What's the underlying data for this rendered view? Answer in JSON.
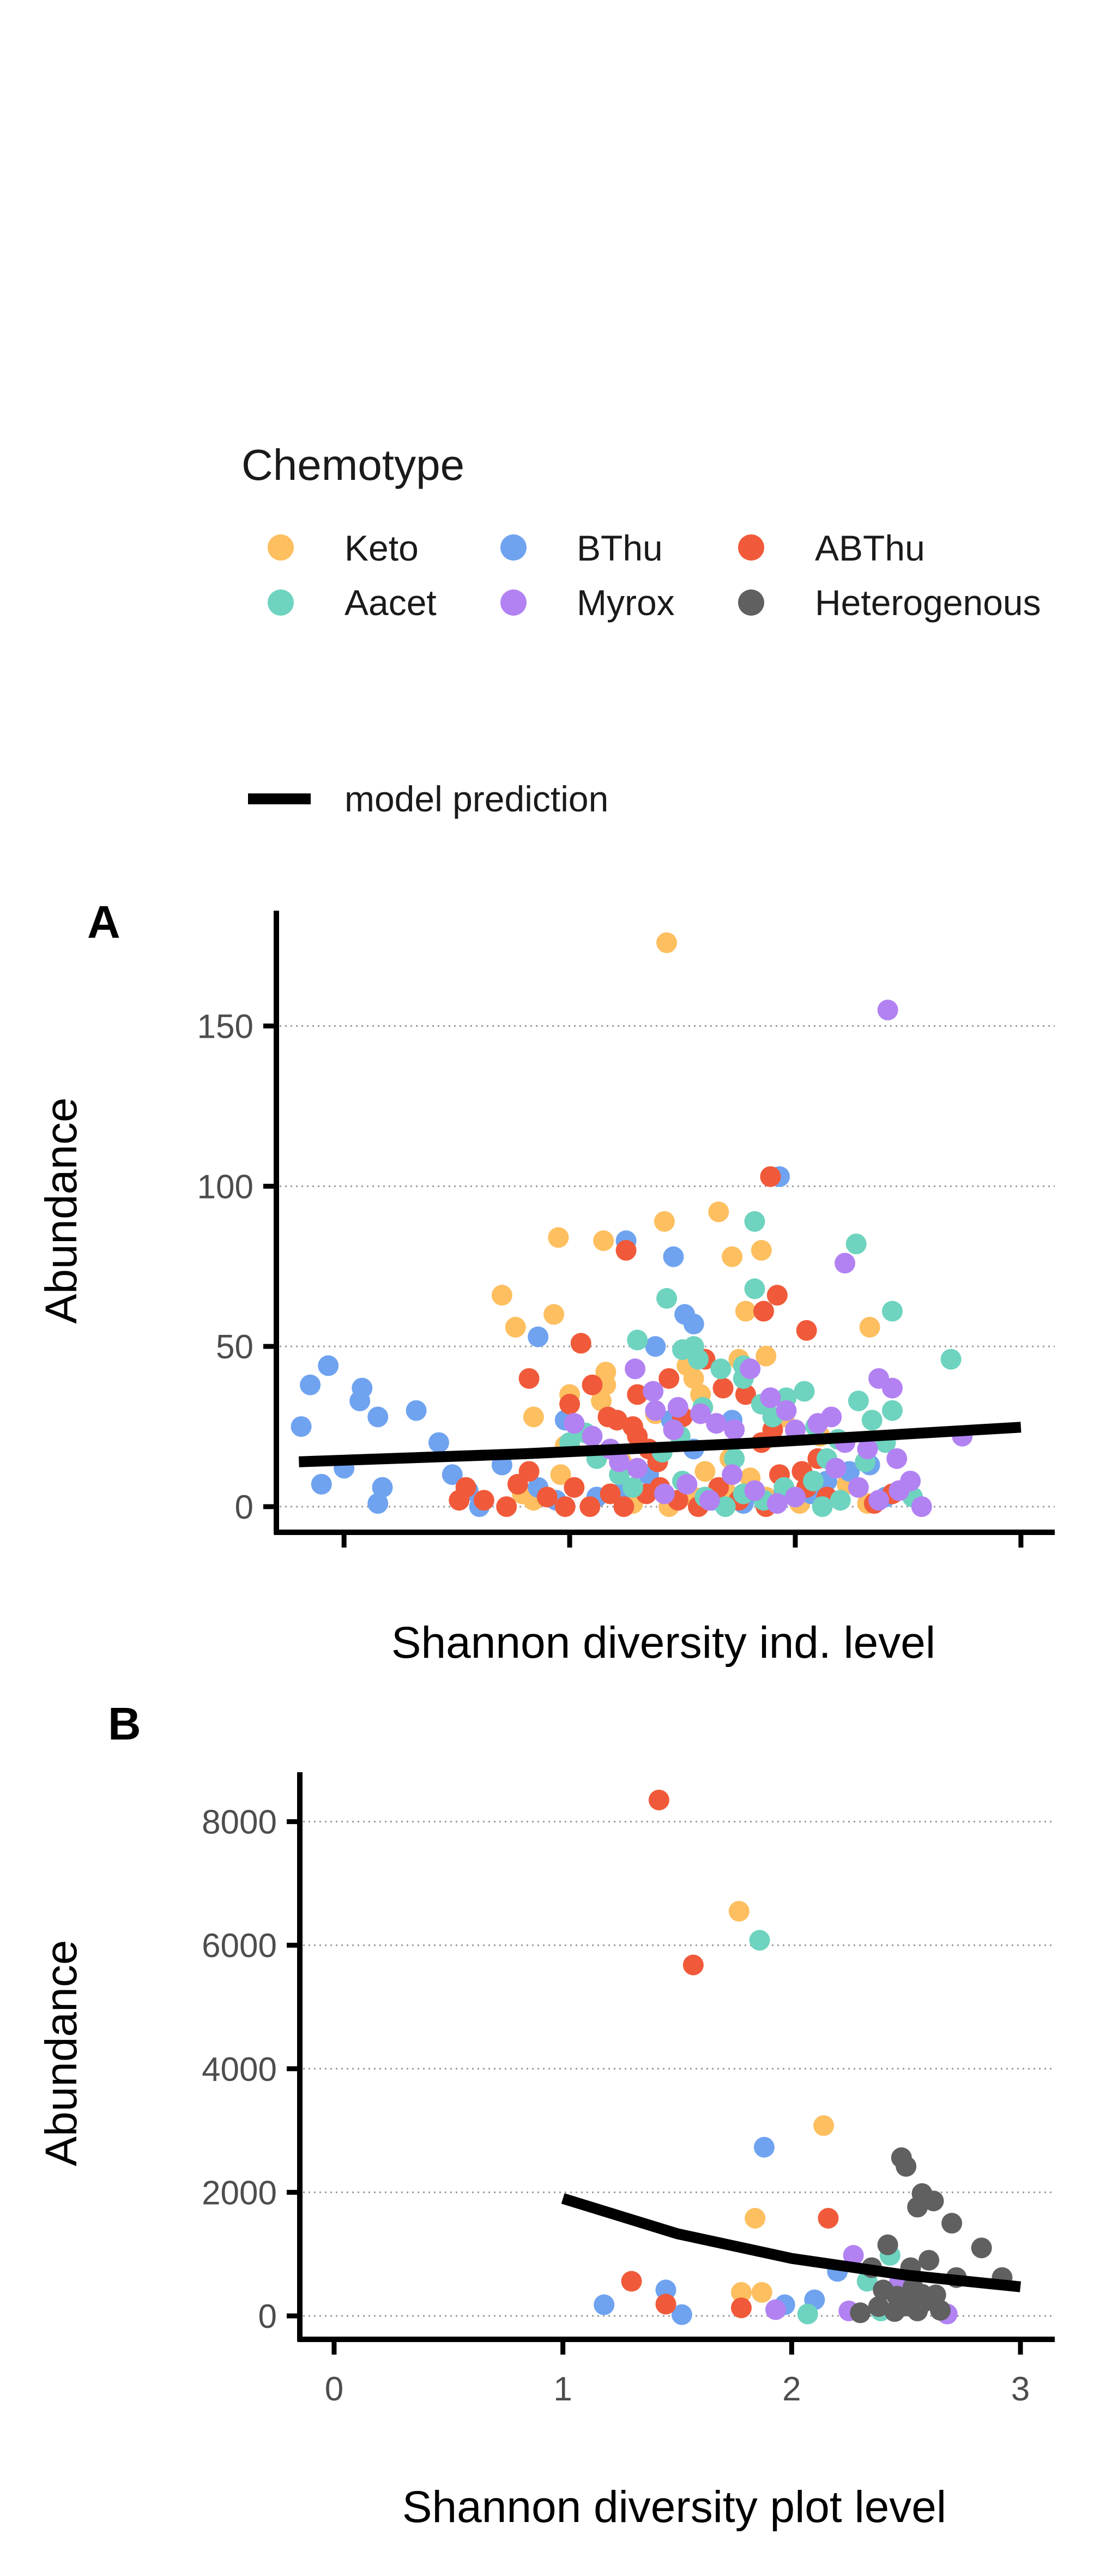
{
  "legend": {
    "title": "Chemotype",
    "items": [
      {
        "label": "Keto",
        "color": "#FDBF5F"
      },
      {
        "label": "BThu",
        "color": "#6FA3F0"
      },
      {
        "label": "ABThu",
        "color": "#F05A3A"
      },
      {
        "label": "Aacet",
        "color": "#6ED3BF"
      },
      {
        "label": "Myrox",
        "color": "#B282F2"
      },
      {
        "label": "Heterogenous",
        "color": "#606060"
      }
    ],
    "line_label": "model prediction"
  },
  "chart_data": [
    {
      "panel": "A",
      "type": "scatter",
      "xlabel": "Shannon diversity ind. level",
      "ylabel": "Abundance",
      "xlim": [
        -0.3,
        3.15
      ],
      "ylim": [
        -8,
        186
      ],
      "xticks": [
        0,
        1,
        2,
        3
      ],
      "xtick_labels": [
        "",
        "",
        "",
        ""
      ],
      "yticks": [
        0,
        50,
        100,
        150
      ],
      "ytick_labels": [
        "0",
        "50",
        "100",
        "150"
      ],
      "grid": "horizontal dotted",
      "model_line": {
        "x": [
          -0.2,
          0.8,
          1.8,
          3.0
        ],
        "y": [
          14,
          16.5,
          19.8,
          24.8
        ]
      },
      "points": {
        "Keto": [
          [
            1.43,
            176
          ],
          [
            1.66,
            92
          ],
          [
            1.72,
            78
          ],
          [
            1.85,
            80
          ],
          [
            0.95,
            84
          ],
          [
            1.15,
            83
          ],
          [
            1.42,
            89
          ],
          [
            0.7,
            66
          ],
          [
            0.76,
            56
          ],
          [
            0.93,
            60
          ],
          [
            2.33,
            56
          ],
          [
            1.16,
            42
          ],
          [
            1.16,
            38
          ],
          [
            1.14,
            33
          ],
          [
            1.52,
            44
          ],
          [
            1.55,
            40
          ],
          [
            1.75,
            46
          ],
          [
            1.78,
            61
          ],
          [
            1.87,
            47
          ],
          [
            1.95,
            28
          ],
          [
            1.38,
            29
          ],
          [
            1.58,
            35
          ],
          [
            0.84,
            28
          ],
          [
            1.0,
            35
          ],
          [
            0.79,
            4
          ],
          [
            0.84,
            2
          ],
          [
            0.96,
            10
          ],
          [
            0.98,
            19
          ],
          [
            1.23,
            14
          ],
          [
            1.28,
            1
          ],
          [
            1.44,
            0
          ],
          [
            1.55,
            3
          ],
          [
            1.6,
            11
          ],
          [
            1.69,
            5
          ],
          [
            1.8,
            9
          ],
          [
            1.87,
            3
          ],
          [
            2.02,
            1
          ],
          [
            2.11,
            22
          ],
          [
            2.23,
            7
          ],
          [
            2.32,
            1
          ],
          [
            1.71,
            15
          ]
        ],
        "BThu": [
          [
            1.93,
            103
          ],
          [
            1.25,
            83
          ],
          [
            1.46,
            78
          ],
          [
            1.55,
            57
          ],
          [
            1.51,
            60
          ],
          [
            1.38,
            50
          ],
          [
            0.86,
            53
          ],
          [
            0.98,
            27
          ],
          [
            -0.19,
            25
          ],
          [
            -0.15,
            38
          ],
          [
            -0.07,
            44
          ],
          [
            0.08,
            37
          ],
          [
            0.07,
            33
          ],
          [
            0.15,
            28
          ],
          [
            0.32,
            30
          ],
          [
            0.42,
            20
          ],
          [
            0.48,
            10
          ],
          [
            -0.1,
            7
          ],
          [
            0.0,
            12
          ],
          [
            0.15,
            1
          ],
          [
            0.17,
            6
          ],
          [
            0.55,
            5
          ],
          [
            0.6,
            0
          ],
          [
            0.86,
            6
          ],
          [
            0.94,
            2
          ],
          [
            1.12,
            3
          ],
          [
            1.22,
            4
          ],
          [
            1.35,
            10
          ],
          [
            1.45,
            27
          ],
          [
            1.63,
            2
          ],
          [
            1.77,
            1
          ],
          [
            1.95,
            5
          ],
          [
            2.07,
            4
          ],
          [
            2.14,
            8
          ],
          [
            2.24,
            11
          ],
          [
            2.33,
            13
          ],
          [
            2.4,
            3
          ],
          [
            1.55,
            18
          ],
          [
            1.72,
            27
          ],
          [
            0.7,
            13
          ]
        ],
        "ABThu": [
          [
            1.89,
            103
          ],
          [
            1.92,
            66
          ],
          [
            1.86,
            61
          ],
          [
            2.05,
            55
          ],
          [
            1.25,
            80
          ],
          [
            1.05,
            51
          ],
          [
            1.0,
            32
          ],
          [
            0.82,
            40
          ],
          [
            1.1,
            38
          ],
          [
            1.17,
            28
          ],
          [
            1.21,
            27
          ],
          [
            1.3,
            35
          ],
          [
            1.3,
            22
          ],
          [
            1.35,
            18
          ],
          [
            1.39,
            14
          ],
          [
            1.44,
            40
          ],
          [
            1.5,
            28
          ],
          [
            1.6,
            46
          ],
          [
            1.68,
            37
          ],
          [
            1.78,
            35
          ],
          [
            1.85,
            20
          ],
          [
            1.93,
            10
          ],
          [
            2.03,
            11
          ],
          [
            2.1,
            15
          ],
          [
            0.51,
            2
          ],
          [
            0.54,
            6
          ],
          [
            0.62,
            2
          ],
          [
            0.72,
            0
          ],
          [
            0.77,
            7
          ],
          [
            0.82,
            11
          ],
          [
            0.9,
            3
          ],
          [
            0.98,
            0
          ],
          [
            1.02,
            6
          ],
          [
            1.09,
            0
          ],
          [
            1.18,
            4
          ],
          [
            1.24,
            0
          ],
          [
            1.34,
            4
          ],
          [
            1.4,
            6
          ],
          [
            1.48,
            2
          ],
          [
            1.57,
            0
          ],
          [
            1.66,
            6
          ],
          [
            1.75,
            2
          ],
          [
            1.87,
            0
          ],
          [
            2.05,
            6
          ],
          [
            2.14,
            3
          ],
          [
            2.35,
            1
          ],
          [
            2.43,
            4
          ],
          [
            1.28,
            25
          ],
          [
            1.9,
            24
          ]
        ],
        "Aacet": [
          [
            1.82,
            89
          ],
          [
            2.27,
            82
          ],
          [
            1.82,
            68
          ],
          [
            2.43,
            61
          ],
          [
            1.5,
            49
          ],
          [
            1.43,
            65
          ],
          [
            1.55,
            50
          ],
          [
            1.57,
            46
          ],
          [
            1.3,
            52
          ],
          [
            1.67,
            43
          ],
          [
            1.77,
            44
          ],
          [
            1.77,
            40
          ],
          [
            1.85,
            32
          ],
          [
            1.9,
            28
          ],
          [
            1.96,
            34
          ],
          [
            2.04,
            36
          ],
          [
            2.09,
            25
          ],
          [
            2.19,
            21
          ],
          [
            2.28,
            33
          ],
          [
            2.34,
            27
          ],
          [
            2.43,
            30
          ],
          [
            2.69,
            46
          ],
          [
            2.14,
            15
          ],
          [
            1.59,
            31
          ],
          [
            1.49,
            22
          ],
          [
            1.41,
            17
          ],
          [
            1.12,
            15
          ],
          [
            1.07,
            23
          ],
          [
            1.0,
            20
          ],
          [
            1.22,
            10
          ],
          [
            1.28,
            6
          ],
          [
            1.5,
            8
          ],
          [
            1.6,
            3
          ],
          [
            1.69,
            0
          ],
          [
            1.77,
            4
          ],
          [
            1.86,
            2
          ],
          [
            1.95,
            6
          ],
          [
            2.12,
            0
          ],
          [
            2.2,
            2
          ],
          [
            2.31,
            14
          ],
          [
            2.4,
            20
          ],
          [
            2.52,
            3
          ],
          [
            1.73,
            15
          ],
          [
            2.08,
            8
          ]
        ],
        "Myrox": [
          [
            2.41,
            155
          ],
          [
            2.22,
            76
          ],
          [
            2.37,
            40
          ],
          [
            2.43,
            37
          ],
          [
            1.29,
            43
          ],
          [
            1.37,
            36
          ],
          [
            1.38,
            30
          ],
          [
            1.48,
            31
          ],
          [
            1.58,
            29
          ],
          [
            1.65,
            26
          ],
          [
            1.73,
            24
          ],
          [
            1.8,
            43
          ],
          [
            1.89,
            34
          ],
          [
            1.96,
            30
          ],
          [
            2.0,
            24
          ],
          [
            2.1,
            26
          ],
          [
            2.16,
            28
          ],
          [
            2.22,
            20
          ],
          [
            2.32,
            18
          ],
          [
            2.45,
            15
          ],
          [
            2.51,
            8
          ],
          [
            2.56,
            0
          ],
          [
            2.74,
            22
          ],
          [
            1.02,
            26
          ],
          [
            1.1,
            22
          ],
          [
            1.18,
            18
          ],
          [
            1.22,
            14
          ],
          [
            1.3,
            12
          ],
          [
            1.42,
            4
          ],
          [
            1.52,
            7
          ],
          [
            1.62,
            2
          ],
          [
            1.72,
            10
          ],
          [
            1.82,
            5
          ],
          [
            1.92,
            1
          ],
          [
            2.0,
            3
          ],
          [
            2.18,
            12
          ],
          [
            2.28,
            6
          ],
          [
            2.37,
            2
          ],
          [
            2.46,
            5
          ],
          [
            1.46,
            24
          ]
        ],
        "Heterogenous": []
      }
    },
    {
      "panel": "B",
      "type": "scatter",
      "xlabel": "Shannon diversity plot level",
      "ylabel": "Abundance",
      "xlim": [
        -0.15,
        3.15
      ],
      "ylim": [
        -380,
        8800
      ],
      "xticks": [
        0,
        1,
        2,
        3
      ],
      "xtick_labels": [
        "0",
        "1",
        "2",
        "3"
      ],
      "yticks": [
        0,
        2000,
        4000,
        6000,
        8000
      ],
      "ytick_labels": [
        "0",
        "2000",
        "4000",
        "6000",
        "8000"
      ],
      "grid": "horizontal dotted",
      "model_line": {
        "x": [
          1.0,
          1.5,
          2.0,
          2.5,
          3.0
        ],
        "y": [
          1900,
          1330,
          930,
          660,
          470
        ]
      },
      "points": {
        "Keto": [
          [
            1.77,
            6550
          ],
          [
            2.14,
            3080
          ],
          [
            1.84,
            1580
          ],
          [
            1.78,
            380
          ],
          [
            1.87,
            380
          ]
        ],
        "BThu": [
          [
            1.88,
            2730
          ],
          [
            1.18,
            180
          ],
          [
            1.45,
            420
          ],
          [
            1.52,
            20
          ],
          [
            2.1,
            260
          ],
          [
            2.2,
            720
          ],
          [
            1.97,
            180
          ]
        ],
        "ABThu": [
          [
            1.42,
            8350
          ],
          [
            1.57,
            5680
          ],
          [
            2.16,
            1580
          ],
          [
            1.3,
            560
          ],
          [
            1.45,
            190
          ],
          [
            1.78,
            130
          ]
        ],
        "Aacet": [
          [
            1.86,
            6080
          ],
          [
            2.43,
            980
          ],
          [
            2.07,
            30
          ],
          [
            2.33,
            560
          ],
          [
            2.39,
            80
          ]
        ],
        "Myrox": [
          [
            2.27,
            980
          ],
          [
            1.93,
            100
          ],
          [
            2.25,
            80
          ],
          [
            2.68,
            30
          ],
          [
            2.47,
            530
          ]
        ],
        "Heterogenous": [
          [
            2.48,
            2560
          ],
          [
            2.5,
            2420
          ],
          [
            2.57,
            1980
          ],
          [
            2.55,
            1760
          ],
          [
            2.62,
            1860
          ],
          [
            2.42,
            1150
          ],
          [
            2.6,
            900
          ],
          [
            2.52,
            780
          ],
          [
            2.7,
            1500
          ],
          [
            2.83,
            1100
          ],
          [
            2.92,
            620
          ],
          [
            2.72,
            620
          ],
          [
            2.35,
            780
          ],
          [
            2.46,
            320
          ],
          [
            2.53,
            460
          ],
          [
            2.58,
            230
          ],
          [
            2.63,
            340
          ],
          [
            2.38,
            150
          ],
          [
            2.4,
            420
          ],
          [
            2.45,
            70
          ],
          [
            2.55,
            80
          ],
          [
            2.65,
            90
          ],
          [
            2.3,
            50
          ],
          [
            2.5,
            160
          ],
          [
            2.57,
            350
          ]
        ]
      }
    }
  ]
}
